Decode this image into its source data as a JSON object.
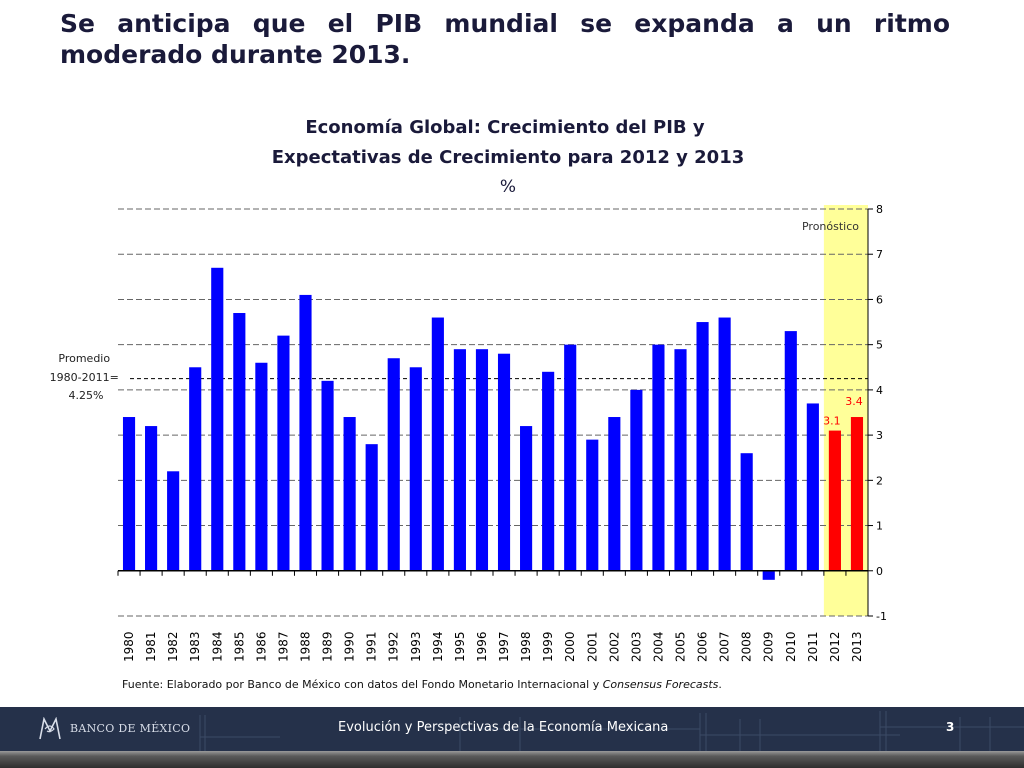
{
  "slide": {
    "title": "Se anticipa que el PIB mundial se expanda a un ritmo moderado durante 2013."
  },
  "chart_data": {
    "type": "bar",
    "title_line1": "Economía Global: Crecimiento del PIB y",
    "title_line2": "Expectativas de Crecimiento para 2012 y 2013",
    "unit": "%",
    "categories": [
      "1980",
      "1981",
      "1982",
      "1983",
      "1984",
      "1985",
      "1986",
      "1987",
      "1988",
      "1989",
      "1990",
      "1991",
      "1992",
      "1993",
      "1994",
      "1995",
      "1996",
      "1997",
      "1998",
      "1999",
      "2000",
      "2001",
      "2002",
      "2003",
      "2004",
      "2005",
      "2006",
      "2007",
      "2008",
      "2009",
      "2010",
      "2011",
      "2012",
      "2013"
    ],
    "values": [
      3.4,
      3.2,
      2.2,
      4.5,
      6.7,
      5.7,
      4.6,
      5.2,
      6.1,
      4.2,
      3.4,
      2.8,
      4.7,
      4.5,
      5.6,
      4.9,
      4.9,
      4.8,
      3.2,
      4.4,
      5.0,
      2.9,
      3.4,
      4.0,
      5.0,
      4.9,
      5.5,
      5.6,
      2.6,
      -0.2,
      5.3,
      3.7,
      3.1,
      3.4
    ],
    "forecast_categories": [
      "2012",
      "2013"
    ],
    "data_labels": [
      {
        "category": "2012",
        "label": "3.1"
      },
      {
        "category": "2013",
        "label": "3.4"
      }
    ],
    "ylim": [
      -1,
      8
    ],
    "yticks": [
      "-1",
      "0",
      "1",
      "2",
      "3",
      "4",
      "5",
      "6",
      "7",
      "8"
    ],
    "grid": "dashed horizontal",
    "average": {
      "value": 4.25,
      "label_lines": [
        "Promedio",
        "1980-2011=",
        "4.25%"
      ]
    },
    "forecast_label": "Pronóstico",
    "source": "Fuente: Elaborado por Banco de México con datos del Fondo Monetario Internacional y ",
    "source_italic": "Consensus Forecasts",
    "source_end": ".",
    "colors": {
      "historical": "#0000ff",
      "forecast": "#ff0000",
      "forecast_band": "#ffff99",
      "forecast_label": "#ff0000"
    }
  },
  "footer": {
    "logo_text": "BANCO DE MÉXICO",
    "text": "Evolución y Perspectivas de la Economía Mexicana",
    "page": "3"
  }
}
